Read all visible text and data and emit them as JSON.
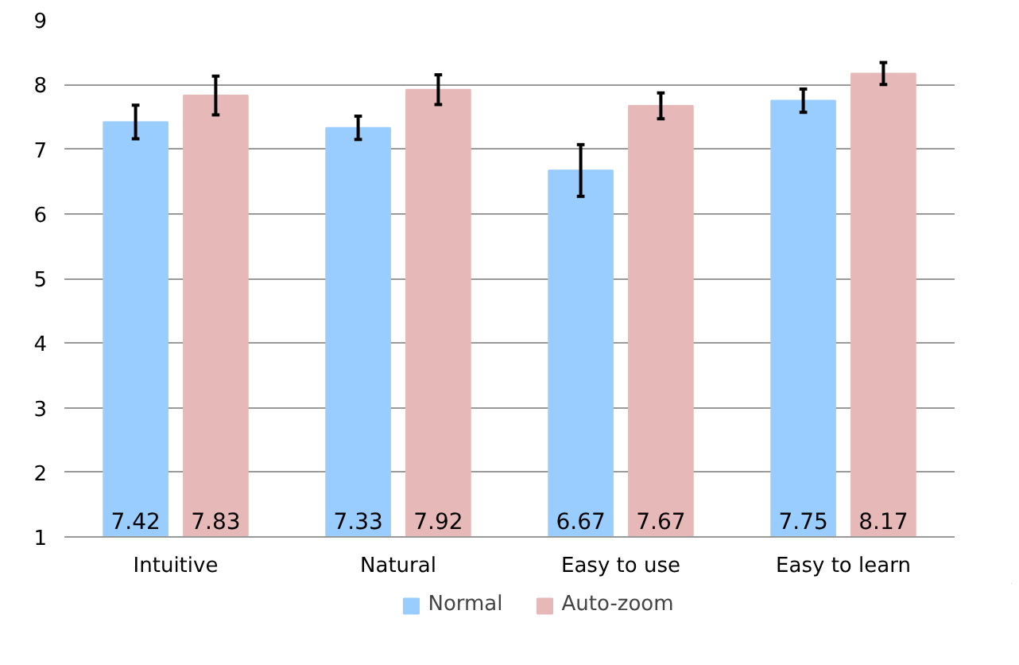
{
  "chart_data": {
    "type": "bar",
    "categories": [
      "Intuitive",
      "Natural",
      "Easy to use",
      "Easy to learn"
    ],
    "series": [
      {
        "name": "Normal",
        "color": "#99ccff",
        "values": [
          7.42,
          7.33,
          6.67,
          7.75
        ],
        "errors": [
          0.26,
          0.18,
          0.4,
          0.18
        ]
      },
      {
        "name": "Auto-zoom",
        "color": "#e6b9b8",
        "values": [
          7.83,
          7.92,
          7.67,
          8.17
        ],
        "errors": [
          0.3,
          0.23,
          0.2,
          0.17
        ]
      }
    ],
    "ylim": [
      1,
      9
    ],
    "yticks": [
      1,
      2,
      3,
      4,
      5,
      6,
      7,
      8,
      9
    ],
    "grid": "y",
    "legend": "bottom",
    "data_labels": true
  }
}
